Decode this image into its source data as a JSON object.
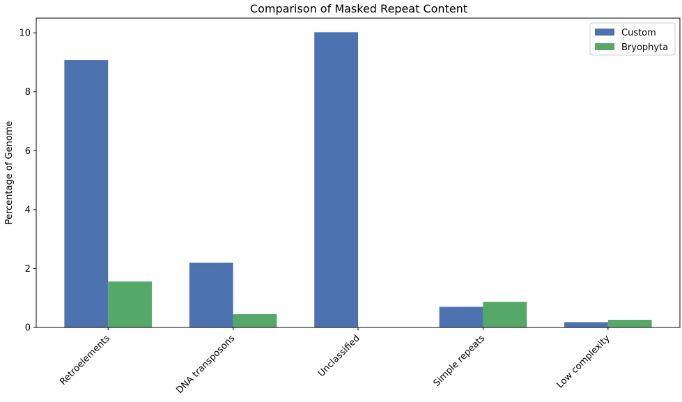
{
  "chart_data": {
    "type": "bar",
    "title": "Comparison of Masked Repeat Content",
    "xlabel": "",
    "ylabel": "Percentage of Genome",
    "ylim": [
      0,
      10.5
    ],
    "yticks": [
      0,
      2,
      4,
      6,
      8,
      10
    ],
    "categories": [
      "Retroelements",
      "DNA transposons",
      "Unclassified",
      "Simple repeats",
      "Low complexity"
    ],
    "series": [
      {
        "name": "Custom",
        "color": "#4c72b0",
        "values": [
          9.08,
          2.2,
          10.02,
          0.7,
          0.18
        ]
      },
      {
        "name": "Bryophyta",
        "color": "#55a868",
        "values": [
          1.56,
          0.45,
          0.0,
          0.87,
          0.26
        ]
      }
    ],
    "legend": {
      "placement": "top-right"
    },
    "grid": false
  }
}
